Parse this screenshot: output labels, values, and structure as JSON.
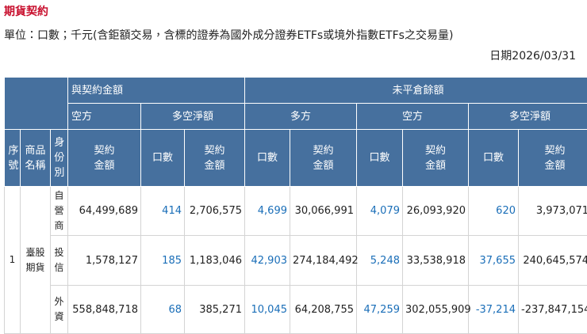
{
  "header": {
    "title": "期貨契約",
    "unit": "單位：口數；千元(含鉅額交易，含標的證券為國外成分證券ETFs或境外指數ETFs之交易量)",
    "date": "日期2026/03/31"
  },
  "table": {
    "group_headers": [
      "與契約金額",
      "未平倉餘額"
    ],
    "sub_headers": [
      "空方",
      "多空淨額",
      "多方",
      "空方",
      "多空淨額"
    ],
    "column_headers": [
      "序號",
      "商品名稱",
      "身份別",
      "契約金額",
      "口數",
      "契約金額",
      "口數",
      "契約金額",
      "口數",
      "契約金額",
      "口數",
      "契約金額"
    ],
    "product": {
      "number": "1",
      "name": "臺股期貨"
    },
    "rows": [
      {
        "identity": "自營商",
        "cells": [
          "64,499,689",
          "414",
          "2,706,575",
          "4,699",
          "30,066,991",
          "4,079",
          "26,093,920",
          "620",
          "3,973,071"
        ]
      },
      {
        "identity": "投信",
        "cells": [
          "1,578,127",
          "185",
          "1,183,046",
          "42,903",
          "274,184,492",
          "5,248",
          "33,538,918",
          "37,655",
          "240,645,574"
        ]
      },
      {
        "identity": "外資",
        "cells": [
          "558,848,718",
          "68",
          "385,271",
          "10,045",
          "64,208,755",
          "47,259",
          "302,055,909",
          "-37,214",
          "-237,847,154"
        ]
      }
    ]
  }
}
